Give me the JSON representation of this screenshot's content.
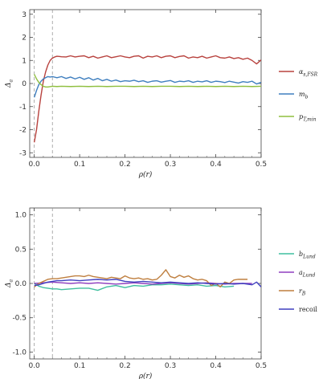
{
  "chart_data": [
    {
      "type": "line",
      "xlabel": "ρ(r)",
      "ylabel": "Δ_a",
      "xlim": [
        -0.01,
        0.5
      ],
      "ylim": [
        -3.2,
        3.2
      ],
      "xticks": [
        "0.0",
        "0.1",
        "0.2",
        "0.3",
        "0.4",
        "0.5"
      ],
      "yticks": [
        "-3",
        "-2",
        "-1",
        "0",
        "1",
        "2",
        "3"
      ],
      "vlines": [
        0.0,
        0.04
      ],
      "grid": false,
      "legend_position": "right",
      "series": [
        {
          "name": "α_{s,FSR}",
          "color": "#b8423e",
          "x": [
            0.0,
            0.005,
            0.01,
            0.015,
            0.02,
            0.025,
            0.03,
            0.035,
            0.04,
            0.045,
            0.05,
            0.055,
            0.06,
            0.07,
            0.08,
            0.09,
            0.1,
            0.11,
            0.12,
            0.13,
            0.14,
            0.15,
            0.16,
            0.17,
            0.18,
            0.19,
            0.2,
            0.21,
            0.22,
            0.23,
            0.24,
            0.25,
            0.26,
            0.27,
            0.28,
            0.29,
            0.3,
            0.31,
            0.32,
            0.33,
            0.34,
            0.35,
            0.36,
            0.37,
            0.38,
            0.39,
            0.4,
            0.41,
            0.42,
            0.43,
            0.44,
            0.45,
            0.46,
            0.47,
            0.48,
            0.49,
            0.5
          ],
          "y": [
            -2.55,
            -2.0,
            -1.2,
            -0.5,
            0.1,
            0.5,
            0.8,
            1.0,
            1.1,
            1.15,
            1.18,
            1.17,
            1.16,
            1.15,
            1.2,
            1.15,
            1.18,
            1.2,
            1.12,
            1.18,
            1.1,
            1.15,
            1.2,
            1.12,
            1.16,
            1.2,
            1.15,
            1.12,
            1.18,
            1.2,
            1.1,
            1.18,
            1.15,
            1.2,
            1.12,
            1.18,
            1.2,
            1.12,
            1.17,
            1.2,
            1.1,
            1.15,
            1.12,
            1.18,
            1.1,
            1.15,
            1.2,
            1.12,
            1.1,
            1.15,
            1.08,
            1.12,
            1.05,
            1.1,
            1.0,
            0.85,
            1.02
          ]
        },
        {
          "name": "m_b",
          "color": "#3f7fbf",
          "x": [
            0.0,
            0.005,
            0.01,
            0.015,
            0.02,
            0.025,
            0.03,
            0.035,
            0.04,
            0.05,
            0.06,
            0.07,
            0.08,
            0.09,
            0.1,
            0.11,
            0.12,
            0.13,
            0.14,
            0.15,
            0.16,
            0.17,
            0.18,
            0.19,
            0.2,
            0.21,
            0.22,
            0.23,
            0.24,
            0.25,
            0.26,
            0.27,
            0.28,
            0.29,
            0.3,
            0.31,
            0.32,
            0.33,
            0.34,
            0.35,
            0.36,
            0.37,
            0.38,
            0.39,
            0.4,
            0.41,
            0.42,
            0.43,
            0.44,
            0.45,
            0.46,
            0.47,
            0.48,
            0.49,
            0.5
          ],
          "y": [
            -0.6,
            -0.3,
            -0.05,
            0.1,
            0.2,
            0.25,
            0.3,
            0.28,
            0.3,
            0.25,
            0.3,
            0.22,
            0.28,
            0.2,
            0.27,
            0.18,
            0.25,
            0.15,
            0.22,
            0.12,
            0.18,
            0.1,
            0.15,
            0.08,
            0.12,
            0.1,
            0.14,
            0.08,
            0.12,
            0.05,
            0.1,
            0.12,
            0.06,
            0.1,
            0.13,
            0.05,
            0.1,
            0.08,
            0.12,
            0.05,
            0.1,
            0.07,
            0.12,
            0.05,
            0.1,
            0.08,
            0.04,
            0.1,
            0.06,
            0.02,
            0.08,
            0.05,
            0.1,
            -0.02,
            0.05
          ]
        },
        {
          "name": "p_{T,min}",
          "color": "#8fbf3f",
          "x": [
            0.0,
            0.005,
            0.01,
            0.015,
            0.02,
            0.025,
            0.03,
            0.04,
            0.05,
            0.06,
            0.08,
            0.1,
            0.12,
            0.14,
            0.16,
            0.18,
            0.2,
            0.22,
            0.24,
            0.26,
            0.28,
            0.3,
            0.32,
            0.34,
            0.36,
            0.38,
            0.4,
            0.42,
            0.44,
            0.46,
            0.48,
            0.5
          ],
          "y": [
            0.4,
            0.2,
            0.05,
            -0.05,
            -0.12,
            -0.15,
            -0.15,
            -0.12,
            -0.13,
            -0.12,
            -0.13,
            -0.12,
            -0.13,
            -0.12,
            -0.13,
            -0.12,
            -0.12,
            -0.13,
            -0.12,
            -0.13,
            -0.12,
            -0.12,
            -0.13,
            -0.12,
            -0.13,
            -0.12,
            -0.13,
            -0.12,
            -0.13,
            -0.12,
            -0.13,
            -0.12
          ]
        }
      ]
    },
    {
      "type": "line",
      "xlabel": "ρ(r)",
      "ylabel": "Δ_a",
      "xlim": [
        -0.01,
        0.5
      ],
      "ylim": [
        -1.1,
        1.1
      ],
      "xticks": [
        "0.0",
        "0.1",
        "0.2",
        "0.3",
        "0.4",
        "0.5"
      ],
      "yticks": [
        "-1.0",
        "-0.5",
        "0.0",
        "0.5",
        "1.0"
      ],
      "vlines": [
        0.0,
        0.04
      ],
      "grid": false,
      "legend_position": "right",
      "series": [
        {
          "name": "b_{Lund}",
          "color": "#3fbf9f",
          "x": [
            0.0,
            0.01,
            0.02,
            0.03,
            0.04,
            0.05,
            0.06,
            0.08,
            0.1,
            0.12,
            0.14,
            0.16,
            0.18,
            0.2,
            0.22,
            0.24,
            0.26,
            0.28,
            0.3,
            0.32,
            0.34,
            0.36,
            0.38,
            0.4,
            0.42,
            0.44
          ],
          "y": [
            0.0,
            -0.04,
            -0.06,
            -0.07,
            -0.08,
            -0.08,
            -0.09,
            -0.08,
            -0.07,
            -0.07,
            -0.1,
            -0.05,
            -0.03,
            -0.06,
            -0.03,
            -0.04,
            -0.02,
            -0.02,
            -0.01,
            -0.02,
            -0.03,
            -0.02,
            -0.04,
            -0.03,
            -0.05,
            -0.04
          ]
        },
        {
          "name": "a_{Lund}",
          "color": "#8f3fbf",
          "x": [
            0.0,
            0.02,
            0.04,
            0.06,
            0.08,
            0.1,
            0.12,
            0.14,
            0.16,
            0.18,
            0.2,
            0.22,
            0.24,
            0.26,
            0.28,
            0.3,
            0.32,
            0.34,
            0.36,
            0.38,
            0.4,
            0.42,
            0.44,
            0.46,
            0.48
          ],
          "y": [
            0.0,
            0.01,
            0.02,
            0.01,
            0.0,
            0.01,
            0.0,
            0.01,
            0.0,
            -0.01,
            0.0,
            0.01,
            0.0,
            -0.01,
            0.0,
            0.01,
            0.0,
            -0.01,
            0.0,
            0.01,
            0.0,
            -0.01,
            0.0,
            0.0,
            0.0
          ]
        },
        {
          "name": "r_B",
          "color": "#bf7f3f",
          "x": [
            0.0,
            0.01,
            0.02,
            0.03,
            0.04,
            0.05,
            0.06,
            0.07,
            0.08,
            0.09,
            0.1,
            0.11,
            0.12,
            0.13,
            0.14,
            0.15,
            0.16,
            0.17,
            0.18,
            0.19,
            0.2,
            0.21,
            0.22,
            0.23,
            0.24,
            0.25,
            0.26,
            0.27,
            0.28,
            0.29,
            0.3,
            0.31,
            0.32,
            0.33,
            0.34,
            0.35,
            0.36,
            0.37,
            0.38,
            0.39,
            0.4,
            0.41,
            0.42,
            0.43,
            0.44,
            0.45,
            0.46,
            0.47
          ],
          "y": [
            -0.05,
            0.0,
            0.03,
            0.06,
            0.07,
            0.07,
            0.08,
            0.09,
            0.1,
            0.11,
            0.11,
            0.1,
            0.12,
            0.1,
            0.09,
            0.08,
            0.07,
            0.09,
            0.08,
            0.07,
            0.11,
            0.08,
            0.07,
            0.08,
            0.06,
            0.07,
            0.05,
            0.06,
            0.12,
            0.2,
            0.1,
            0.08,
            0.12,
            0.09,
            0.11,
            0.07,
            0.05,
            0.06,
            0.04,
            -0.03,
            0.0,
            -0.05,
            0.02,
            0.0,
            0.05,
            0.06,
            0.06,
            0.06
          ]
        },
        {
          "name": "recoil",
          "color": "#3f3fbf",
          "x": [
            0.0,
            0.01,
            0.02,
            0.03,
            0.04,
            0.05,
            0.06,
            0.08,
            0.1,
            0.12,
            0.14,
            0.16,
            0.18,
            0.2,
            0.22,
            0.24,
            0.26,
            0.28,
            0.3,
            0.32,
            0.34,
            0.36,
            0.38,
            0.4,
            0.42,
            0.44,
            0.46,
            0.48,
            0.49,
            0.5
          ],
          "y": [
            -0.03,
            -0.02,
            0.0,
            0.02,
            0.03,
            0.04,
            0.04,
            0.05,
            0.04,
            0.05,
            0.06,
            0.05,
            0.06,
            0.03,
            0.02,
            0.03,
            0.02,
            0.01,
            0.02,
            0.01,
            0.0,
            0.01,
            0.0,
            -0.01,
            0.0,
            -0.01,
            0.0,
            -0.02,
            0.02,
            -0.05
          ]
        }
      ]
    }
  ]
}
